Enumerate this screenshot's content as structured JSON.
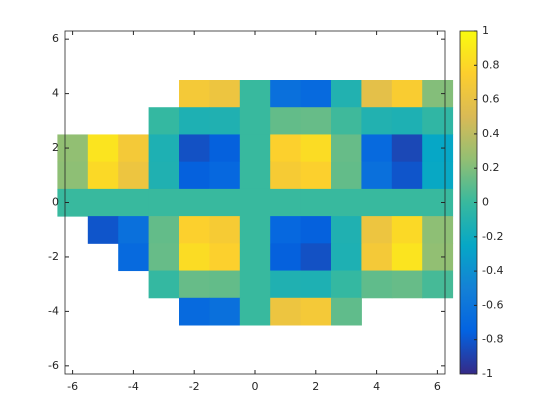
{
  "chart_data": {
    "type": "heatmap",
    "colormap": "parula",
    "x": [
      -6,
      -5,
      -4,
      -3,
      -2,
      -1,
      0,
      1,
      2,
      3,
      4,
      5,
      6
    ],
    "y": [
      4,
      3,
      2,
      1,
      0,
      -1,
      -2,
      -3,
      -4
    ],
    "z": [
      [
        null,
        null,
        null,
        null,
        0.69,
        0.64,
        0,
        -0.64,
        -0.69,
        -0.11,
        0.58,
        0.73,
        0.21
      ],
      [
        null,
        null,
        null,
        -0.02,
        -0.13,
        -0.12,
        0,
        0.12,
        0.13,
        0.02,
        -0.11,
        -0.13,
        -0.04
      ],
      [
        0.25,
        0.87,
        0.69,
        -0.13,
        -0.83,
        -0.76,
        0,
        0.76,
        0.83,
        0.13,
        -0.69,
        -0.87,
        -0.25
      ],
      [
        0.24,
        0.81,
        0.64,
        -0.12,
        -0.76,
        -0.71,
        0,
        0.71,
        0.76,
        0.12,
        -0.64,
        -0.81,
        -0.24
      ],
      [
        0,
        0,
        0,
        0,
        0,
        0,
        0,
        0,
        0,
        0,
        0,
        0,
        0
      ],
      [
        null,
        -0.81,
        -0.64,
        0.12,
        0.76,
        0.71,
        0,
        -0.71,
        -0.76,
        -0.12,
        0.64,
        0.81,
        0.24
      ],
      [
        null,
        null,
        -0.69,
        0.13,
        0.83,
        0.76,
        0,
        -0.76,
        -0.83,
        -0.13,
        0.69,
        0.87,
        0.25
      ],
      [
        null,
        null,
        null,
        -0.02,
        0.13,
        0.12,
        0,
        -0.12,
        -0.13,
        -0.02,
        0.11,
        0.13,
        0.04
      ],
      [
        null,
        null,
        null,
        null,
        -0.69,
        -0.64,
        0,
        0.64,
        0.69,
        0.11,
        null,
        null,
        null
      ]
    ],
    "xlim": [
      -6.25,
      6.25
    ],
    "ylim": [
      -6.3,
      6.3
    ],
    "xticks": [
      -6,
      -4,
      -2,
      0,
      2,
      4,
      6
    ],
    "yticks": [
      -6,
      -4,
      -2,
      0,
      2,
      4,
      6
    ],
    "clim": [
      -1,
      1
    ],
    "cticks": [
      -1,
      -0.8,
      -0.6,
      -0.4,
      -0.2,
      0,
      0.2,
      0.4,
      0.6,
      0.8,
      1
    ]
  }
}
